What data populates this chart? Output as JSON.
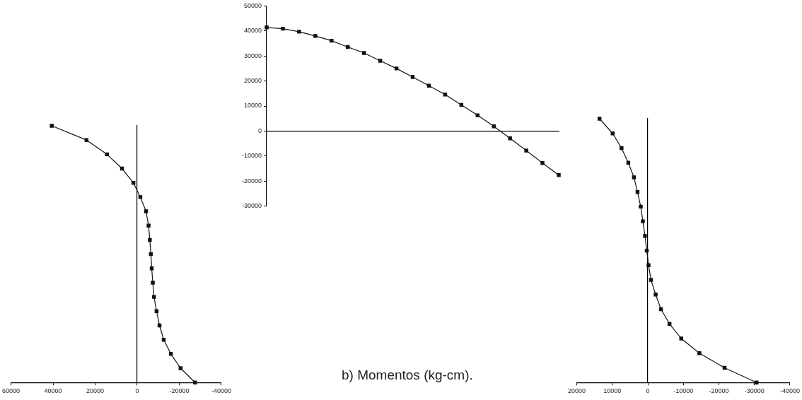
{
  "chart_data": [
    {
      "type": "line",
      "orientation": "horizontal",
      "categories": [
        null,
        null,
        null,
        null,
        null,
        null,
        null,
        null,
        null,
        null,
        null,
        null,
        null,
        null,
        null,
        null,
        null,
        null,
        null
      ],
      "series": [
        {
          "color": "#111111",
          "values": [
            40600,
            24100,
            14400,
            7200,
            1800,
            -1500,
            -4200,
            -5400,
            -6000,
            -6500,
            -6900,
            -7400,
            -8000,
            -9200,
            -10600,
            -12600,
            -16000,
            -20600,
            -27500
          ]
        }
      ],
      "xlim": [
        60000,
        -40000
      ],
      "xticks": [
        60000,
        40000,
        20000,
        0,
        -20000,
        -40000
      ],
      "tick_labels": "x",
      "legend": false,
      "marker": "square",
      "line_style": "solid"
    },
    {
      "type": "line",
      "categories": [
        null,
        null,
        null,
        null,
        null,
        null,
        null,
        null,
        null,
        null,
        null,
        null,
        null,
        null,
        null,
        null,
        null,
        null,
        null
      ],
      "series": [
        {
          "color": "#111111",
          "values": [
            41400,
            40900,
            39700,
            38000,
            36100,
            33600,
            31200,
            28100,
            25000,
            21600,
            18100,
            14600,
            10400,
            6300,
            1900,
            -2900,
            -7800,
            -12800,
            -17600
          ]
        }
      ],
      "ylim": [
        -30000,
        50000
      ],
      "yticks": [
        -30000,
        -20000,
        -10000,
        0,
        10000,
        20000,
        30000,
        40000,
        50000
      ],
      "tick_labels": "y",
      "legend": false,
      "marker": "square",
      "line_style": "solid",
      "annotations": [
        "b) Momentos (kg-cm)."
      ]
    },
    {
      "type": "line",
      "orientation": "horizontal",
      "categories": [
        null,
        null,
        null,
        null,
        null,
        null,
        null,
        null,
        null,
        null,
        null,
        null,
        null,
        null,
        null,
        null,
        null,
        null,
        null
      ],
      "series": [
        {
          "color": "#111111",
          "values": [
            13600,
            9900,
            7400,
            5500,
            3900,
            2900,
            2000,
            1400,
            800,
            300,
            -200,
            -900,
            -2200,
            -3700,
            -6100,
            -9400,
            -14500,
            -21600,
            -30600
          ]
        }
      ],
      "xlim": [
        20000,
        -40000
      ],
      "xticks": [
        20000,
        10000,
        0,
        -10000,
        -20000,
        -30000,
        -40000
      ],
      "tick_labels": "x",
      "legend": false,
      "marker": "square",
      "line_style": "solid"
    }
  ]
}
